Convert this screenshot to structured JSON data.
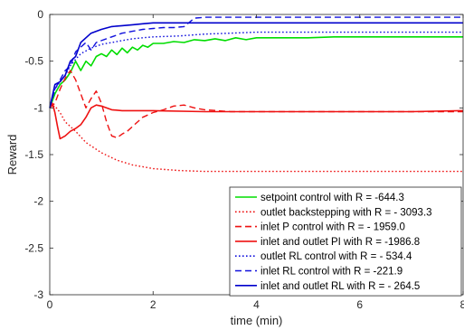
{
  "chart_data": {
    "type": "line",
    "title": "",
    "xlabel": "time (min)",
    "ylabel": "Reward",
    "xlim": [
      0,
      8
    ],
    "ylim": [
      -3,
      0
    ],
    "xticks": [
      0,
      2,
      4,
      6,
      8
    ],
    "xtick_labels": [
      "0",
      "2",
      "4",
      "6",
      "8"
    ],
    "yticks": [
      0,
      -0.5,
      -1,
      -1.5,
      -2,
      -2.5,
      -3
    ],
    "ytick_labels": [
      "0",
      "-0.5",
      "-1",
      "-1.5",
      "-2",
      "-2.5",
      "-3"
    ],
    "grid": false,
    "legend_position": "bottom-right",
    "series": [
      {
        "name": "setpoint control with R = -644.3",
        "color": "#00dd00",
        "style": "solid",
        "x": [
          0,
          0.1,
          0.2,
          0.3,
          0.4,
          0.5,
          0.6,
          0.7,
          0.8,
          0.9,
          1.0,
          1.1,
          1.2,
          1.3,
          1.4,
          1.5,
          1.6,
          1.7,
          1.8,
          1.9,
          2.0,
          2.2,
          2.4,
          2.6,
          2.8,
          3.0,
          3.2,
          3.4,
          3.6,
          3.8,
          4.0,
          4.5,
          5.0,
          5.5,
          6.0,
          7.0,
          8.0
        ],
        "y": [
          -1.0,
          -0.85,
          -0.75,
          -0.7,
          -0.62,
          -0.5,
          -0.6,
          -0.5,
          -0.55,
          -0.45,
          -0.42,
          -0.45,
          -0.38,
          -0.43,
          -0.36,
          -0.41,
          -0.35,
          -0.38,
          -0.33,
          -0.35,
          -0.31,
          -0.31,
          -0.29,
          -0.3,
          -0.27,
          -0.28,
          -0.26,
          -0.28,
          -0.25,
          -0.27,
          -0.25,
          -0.25,
          -0.25,
          -0.24,
          -0.24,
          -0.24,
          -0.24
        ]
      },
      {
        "name": "outlet backstepping with R = - 3093.3",
        "color": "#ee1111",
        "style": "dotted",
        "x": [
          0,
          0.1,
          0.2,
          0.3,
          0.5,
          0.7,
          1.0,
          1.3,
          1.6,
          2.0,
          2.5,
          3.0,
          4.0,
          5.0,
          6.0,
          7.0,
          8.0
        ],
        "y": [
          -1.0,
          -0.98,
          -1.05,
          -1.15,
          -1.25,
          -1.37,
          -1.48,
          -1.56,
          -1.61,
          -1.65,
          -1.67,
          -1.68,
          -1.68,
          -1.68,
          -1.68,
          -1.68,
          -1.68
        ]
      },
      {
        "name": "inlet P control with R = - 1959.0",
        "color": "#ee1111",
        "style": "dashed",
        "x": [
          0,
          0.1,
          0.2,
          0.3,
          0.4,
          0.5,
          0.6,
          0.7,
          0.8,
          0.9,
          1.0,
          1.1,
          1.2,
          1.3,
          1.4,
          1.5,
          1.6,
          1.8,
          2.0,
          2.2,
          2.4,
          2.6,
          2.8,
          3.0,
          3.5,
          4.0,
          5.0,
          6.0,
          7.0,
          8.0
        ],
        "y": [
          -1.0,
          -0.95,
          -0.8,
          -0.68,
          -0.6,
          -0.7,
          -0.85,
          -1.0,
          -0.9,
          -0.82,
          -0.95,
          -1.15,
          -1.3,
          -1.32,
          -1.28,
          -1.25,
          -1.2,
          -1.1,
          -1.05,
          -1.02,
          -0.98,
          -0.97,
          -1.0,
          -1.02,
          -1.04,
          -1.04,
          -1.04,
          -1.04,
          -1.04,
          -1.04
        ]
      },
      {
        "name": "inlet and outlet PI with R = -1986.8",
        "color": "#ee1111",
        "style": "solid",
        "x": [
          0,
          0.05,
          0.1,
          0.15,
          0.2,
          0.3,
          0.4,
          0.5,
          0.6,
          0.7,
          0.8,
          0.9,
          1.0,
          1.2,
          1.4,
          1.6,
          1.8,
          2.0,
          3.0,
          4.0,
          5.0,
          6.0,
          7.0,
          8.0
        ],
        "y": [
          -1.0,
          -0.95,
          -1.05,
          -1.2,
          -1.33,
          -1.3,
          -1.25,
          -1.22,
          -1.18,
          -1.1,
          -1.0,
          -0.97,
          -0.98,
          -1.02,
          -1.03,
          -1.03,
          -1.03,
          -1.03,
          -1.04,
          -1.04,
          -1.04,
          -1.04,
          -1.04,
          -1.03
        ]
      },
      {
        "name": "outlet RL control with R = - 534.4",
        "color": "#1111dd",
        "style": "dotted",
        "x": [
          0,
          0.1,
          0.2,
          0.3,
          0.4,
          0.5,
          0.6,
          0.8,
          1.0,
          1.2,
          1.4,
          1.6,
          1.8,
          2.0,
          2.5,
          3.0,
          3.5,
          4.0,
          5.0,
          6.0,
          7.0,
          8.0
        ],
        "y": [
          -1.0,
          -0.8,
          -0.72,
          -0.65,
          -0.55,
          -0.48,
          -0.42,
          -0.36,
          -0.32,
          -0.3,
          -0.28,
          -0.26,
          -0.25,
          -0.24,
          -0.23,
          -0.21,
          -0.2,
          -0.19,
          -0.19,
          -0.19,
          -0.19,
          -0.19
        ]
      },
      {
        "name": "inlet RL control with R = -221.9",
        "color": "#1111dd",
        "style": "dashed",
        "x": [
          0,
          0.1,
          0.2,
          0.3,
          0.4,
          0.5,
          0.6,
          0.7,
          0.8,
          0.9,
          1.0,
          1.2,
          1.4,
          1.6,
          1.8,
          2.0,
          2.2,
          2.4,
          2.6,
          2.8,
          3.0,
          4.0,
          5.0,
          6.0,
          7.0,
          8.0
        ],
        "y": [
          -1.0,
          -0.8,
          -0.7,
          -0.6,
          -0.55,
          -0.4,
          -0.35,
          -0.3,
          -0.38,
          -0.3,
          -0.28,
          -0.24,
          -0.2,
          -0.18,
          -0.16,
          -0.15,
          -0.14,
          -0.14,
          -0.13,
          -0.04,
          -0.03,
          -0.03,
          -0.03,
          -0.03,
          -0.03,
          -0.03
        ]
      },
      {
        "name": "inlet and outlet RL with R = - 264.5",
        "color": "#0000cc",
        "style": "solid",
        "x": [
          0,
          0.1,
          0.2,
          0.3,
          0.4,
          0.5,
          0.6,
          0.7,
          0.8,
          1.0,
          1.2,
          1.4,
          1.6,
          1.8,
          2.0,
          2.2,
          2.5,
          3.0,
          4.0,
          5.0,
          6.0,
          7.0,
          8.0
        ],
        "y": [
          -1.0,
          -0.75,
          -0.72,
          -0.65,
          -0.5,
          -0.45,
          -0.3,
          -0.25,
          -0.2,
          -0.16,
          -0.13,
          -0.12,
          -0.11,
          -0.1,
          -0.09,
          -0.09,
          -0.09,
          -0.09,
          -0.09,
          -0.09,
          -0.09,
          -0.09,
          -0.09
        ]
      }
    ]
  }
}
